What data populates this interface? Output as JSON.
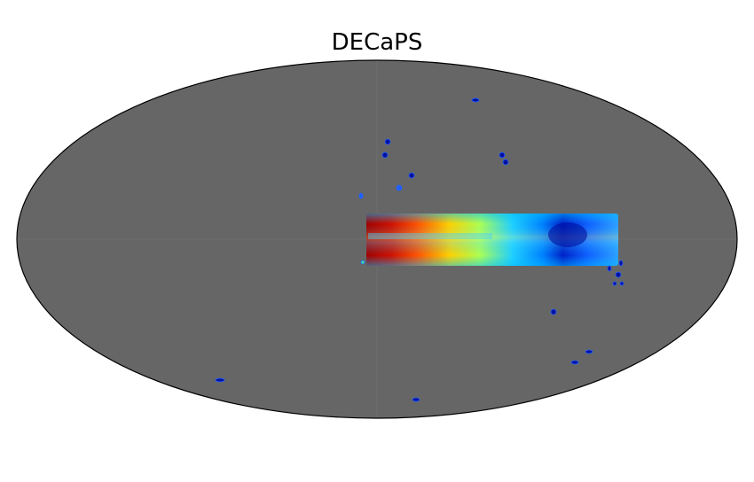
{
  "title": "DECaPS"
}
